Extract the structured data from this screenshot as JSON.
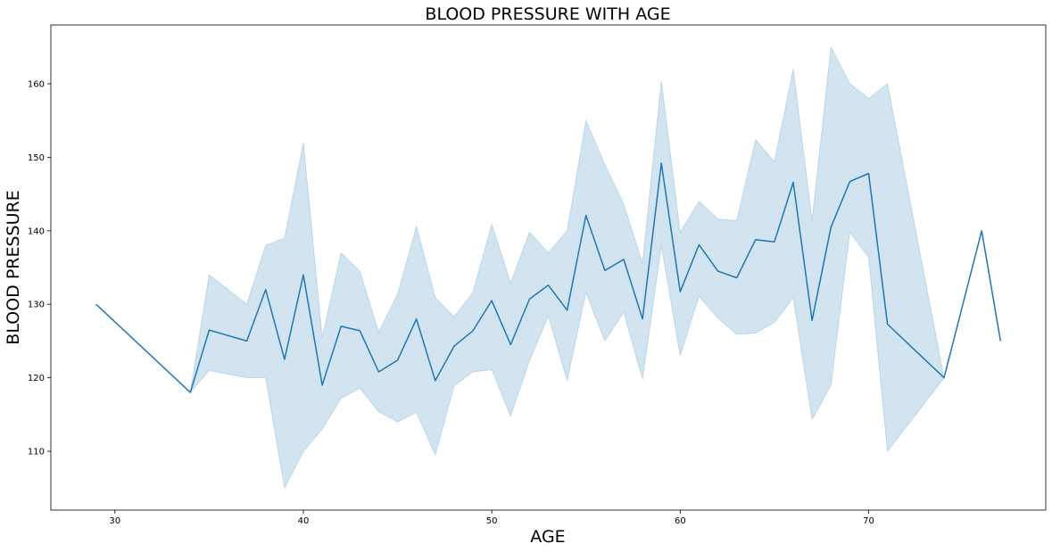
{
  "chart_data": {
    "type": "line",
    "title": "BLOOD PRESSURE WITH AGE",
    "xlabel": "AGE",
    "ylabel": "BLOOD PRESSURE",
    "xlim": [
      26.6,
      79.4
    ],
    "ylim": [
      102.0,
      168.0
    ],
    "xticks": [
      30,
      40,
      50,
      60,
      70
    ],
    "yticks": [
      110,
      120,
      130,
      140,
      150,
      160
    ],
    "grid": false,
    "colors": {
      "line": "#1f77b4",
      "band": "#1f77b4"
    },
    "series": [
      {
        "x": [
          29,
          34,
          35,
          37,
          38,
          39,
          40,
          41,
          42,
          43,
          44,
          45,
          46,
          47,
          48,
          49,
          50,
          51,
          52,
          53,
          54,
          55,
          56,
          57,
          58,
          59,
          60,
          61,
          62,
          63,
          64,
          65,
          66,
          67,
          68,
          69,
          70,
          71,
          74,
          76,
          77
        ],
        "y": [
          130,
          118,
          126.5,
          125,
          132,
          122.5,
          134,
          119,
          127,
          126.4,
          120.8,
          122.4,
          128,
          119.6,
          124.3,
          126.4,
          130.5,
          124.5,
          130.7,
          132.6,
          129.2,
          142.1,
          134.6,
          136.1,
          128,
          149.2,
          131.7,
          138.1,
          134.5,
          133.6,
          138.8,
          138.5,
          146.6,
          127.8,
          140.5,
          146.7,
          147.8,
          127.3,
          120,
          140,
          125
        ],
        "lower": [
          130,
          118,
          121,
          120,
          120,
          105,
          110,
          113,
          117.2,
          118.6,
          115.4,
          114,
          115.3,
          109.5,
          118.9,
          120.8,
          121.1,
          114.8,
          122.3,
          128.4,
          119.6,
          131.6,
          125,
          128.9,
          119.8,
          138,
          123,
          131.1,
          128.1,
          125.9,
          126.1,
          127.5,
          130.9,
          114.3,
          119,
          139.8,
          136.4,
          110,
          120,
          140,
          125
        ],
        "upper": [
          130,
          118,
          134,
          130,
          138,
          139,
          152,
          125.5,
          137,
          134.5,
          126.2,
          131.4,
          140.6,
          130.9,
          128.3,
          131.6,
          140.9,
          132.9,
          139.8,
          137,
          140,
          155,
          149,
          143.6,
          135.6,
          160.4,
          139.8,
          144,
          141.6,
          141.4,
          152.4,
          149.4,
          162,
          141.4,
          165,
          160,
          158,
          160,
          120,
          140,
          125
        ]
      }
    ]
  }
}
